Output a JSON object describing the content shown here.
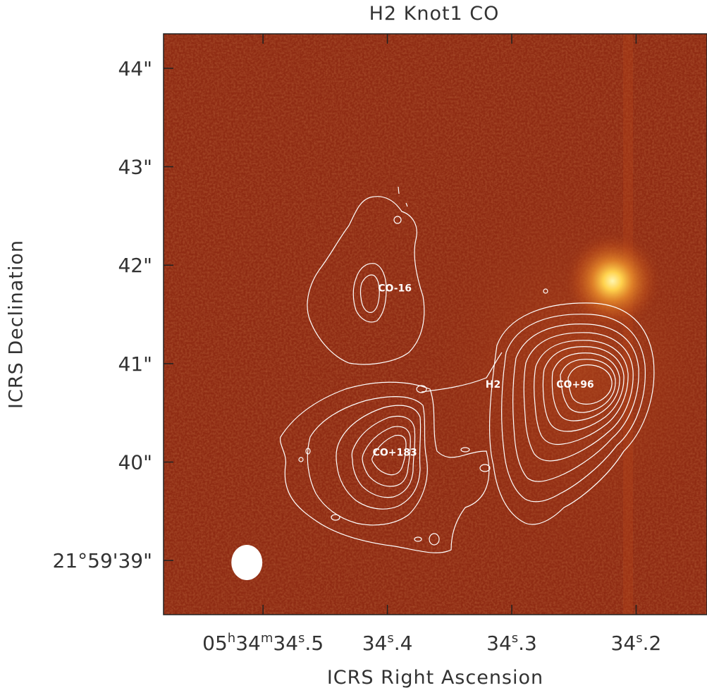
{
  "chart_data": {
    "type": "heatmap",
    "title": "H2 Knot1 CO",
    "xlabel": "ICRS Right Ascension",
    "ylabel": "ICRS Declination",
    "x_ticks": [
      {
        "value": 34.5,
        "h": "05",
        "m": "34",
        "s": "34",
        "frac": ".5"
      },
      {
        "value": 34.4,
        "h": "",
        "m": "",
        "s": "34",
        "frac": ".4"
      },
      {
        "value": 34.3,
        "h": "",
        "m": "",
        "s": "34",
        "frac": ".3"
      },
      {
        "value": 34.2,
        "h": "",
        "m": "",
        "s": "34",
        "frac": ".2"
      }
    ],
    "y_ticks": [
      {
        "value": 39,
        "label": "21°59'39\""
      },
      {
        "value": 40,
        "label": "40\""
      },
      {
        "value": 41,
        "label": "41\""
      },
      {
        "value": 42,
        "label": "42\""
      },
      {
        "value": 43,
        "label": "43\""
      },
      {
        "value": 44,
        "label": "44\""
      }
    ],
    "xlim": [
      34.58,
      34.143
    ],
    "ylim": [
      38.45,
      44.35
    ],
    "sources": [
      {
        "label": "CO-16",
        "ra": 34.394,
        "dec": 41.77
      },
      {
        "label": "CO+183",
        "ra": 34.394,
        "dec": 40.1
      },
      {
        "label": "CO+96",
        "ra": 34.249,
        "dec": 40.79
      },
      {
        "label": "H2",
        "ra": 34.315,
        "dec": 40.79
      }
    ],
    "bright_star": {
      "ra": 34.219,
      "dec": 41.84
    },
    "beam": {
      "ra": 34.513,
      "dec": 38.98
    },
    "colors": {
      "background": "#8f2b13",
      "contour": "#ffffff",
      "star": "#ffe27a"
    }
  }
}
